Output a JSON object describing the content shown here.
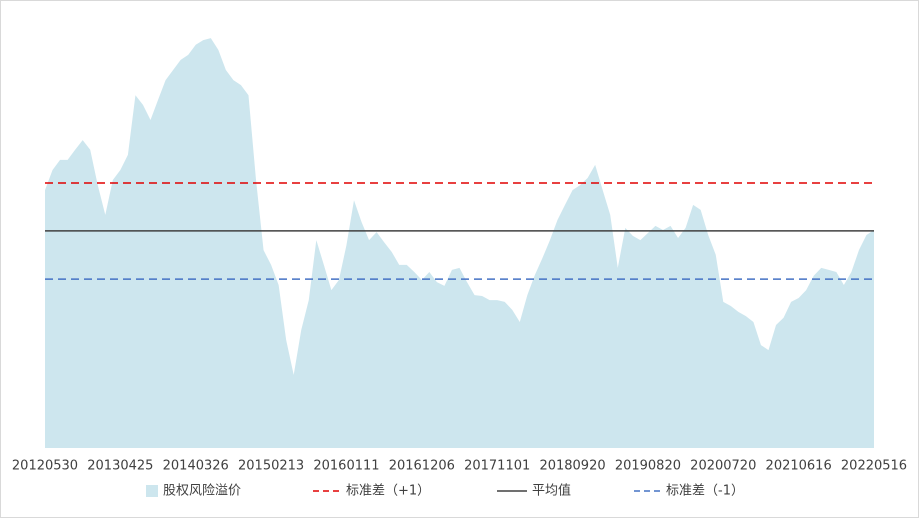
{
  "chart_data": {
    "type": "area",
    "categories": [
      "20120530",
      null,
      null,
      null,
      null,
      null,
      null,
      null,
      null,
      null,
      "20130425",
      null,
      null,
      null,
      null,
      null,
      null,
      null,
      null,
      null,
      "20140326",
      null,
      null,
      null,
      null,
      null,
      null,
      null,
      null,
      null,
      "20150213",
      null,
      null,
      null,
      null,
      null,
      null,
      null,
      null,
      null,
      "20160111",
      null,
      null,
      null,
      null,
      null,
      null,
      null,
      null,
      null,
      "20161206",
      null,
      null,
      null,
      null,
      null,
      null,
      null,
      null,
      null,
      "20171101",
      null,
      null,
      null,
      null,
      null,
      null,
      null,
      null,
      null,
      "20180920",
      null,
      null,
      null,
      null,
      null,
      null,
      null,
      null,
      null,
      "20190820",
      null,
      null,
      null,
      null,
      null,
      null,
      null,
      null,
      null,
      "20200720",
      null,
      null,
      null,
      null,
      null,
      null,
      null,
      null,
      null,
      "20210616",
      null,
      null,
      null,
      null,
      null,
      null,
      null,
      null,
      null,
      "20220516"
    ],
    "series": [
      {
        "name": "股权风险溢价",
        "color": "#cde6ee",
        "values": [
          6.14,
          6.62,
          6.86,
          6.86,
          7.1,
          7.33,
          7.1,
          6.26,
          5.55,
          6.38,
          6.62,
          6.98,
          8.4,
          8.17,
          7.81,
          8.29,
          8.76,
          9.0,
          9.24,
          9.36,
          9.6,
          9.71,
          9.76,
          9.48,
          9.0,
          8.76,
          8.64,
          8.4,
          6.38,
          4.71,
          4.36,
          3.88,
          2.57,
          1.74,
          2.81,
          3.52,
          4.95,
          4.36,
          3.76,
          4.0,
          4.83,
          5.9,
          5.38,
          4.95,
          5.14,
          4.9,
          4.67,
          4.36,
          4.36,
          4.19,
          4.0,
          4.19,
          3.95,
          3.86,
          4.24,
          4.29,
          3.95,
          3.64,
          3.62,
          3.52,
          3.52,
          3.48,
          3.29,
          3.0,
          3.64,
          4.12,
          4.52,
          4.95,
          5.43,
          5.79,
          6.14,
          6.26,
          6.43,
          6.74,
          6.14,
          5.55,
          4.29,
          5.24,
          5.05,
          4.95,
          5.12,
          5.29,
          5.19,
          5.29,
          5.0,
          5.24,
          5.79,
          5.67,
          5.07,
          4.6,
          3.48,
          3.38,
          3.24,
          3.14,
          3.0,
          2.45,
          2.33,
          2.93,
          3.1,
          3.48,
          3.57,
          3.76,
          4.1,
          4.29,
          4.24,
          4.19,
          3.88,
          4.19,
          4.71,
          5.07,
          5.19
        ]
      }
    ],
    "reference_lines": [
      {
        "name": "标准差（+1）",
        "color": "#e00000",
        "value": 6.31,
        "dashed": true
      },
      {
        "name": "平均值",
        "color": "#404040",
        "value": 5.17,
        "dashed": false
      },
      {
        "name": "标准差（-1）",
        "color": "#4472c4",
        "value": 4.02,
        "dashed": true
      }
    ],
    "ylim": [
      0,
      10
    ]
  }
}
